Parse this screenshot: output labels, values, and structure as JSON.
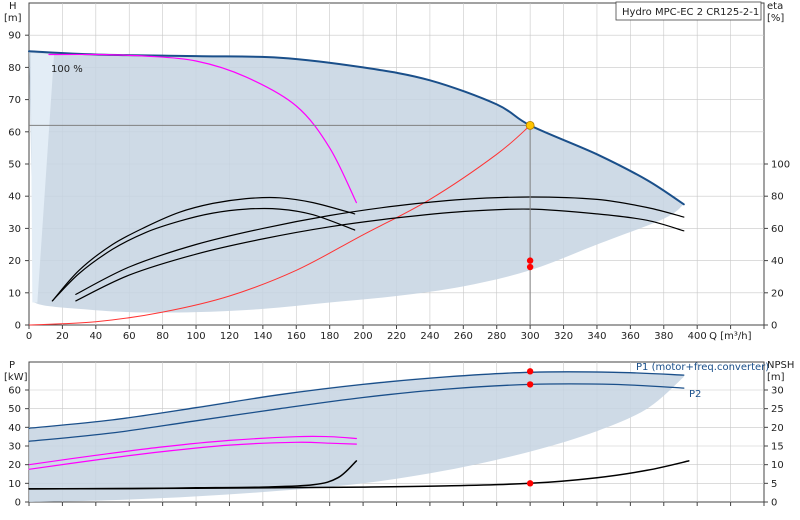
{
  "title": "Hydro MPC-EC 2 CR125-2-1",
  "colors": {
    "envelope": "#c6d4e2",
    "envelope_light": "#e3edf6",
    "grid": "#c8c8c8",
    "operating": "#808080",
    "pump_curve": "#1a4f8a",
    "reduced_curve": "#ff00ff",
    "system_curve": "#ff3333",
    "eff_curve": "#000000",
    "duty_point": "#ffc400",
    "marker": "#ff0000",
    "power_curve": "#1a4f8a",
    "npsh_curve": "#000000"
  },
  "chart_data": [
    {
      "type": "line",
      "panel": "head_eta",
      "xlabel": "Q [m³/h]",
      "ylabel_left": [
        "H",
        "[m]"
      ],
      "ylabel_right": [
        "eta",
        "[%]"
      ],
      "xlim": [
        0,
        440
      ],
      "ylim_left": [
        0,
        100
      ],
      "ylim_right": [
        0,
        200
      ],
      "x_ticks": [
        0,
        20,
        40,
        60,
        80,
        100,
        120,
        140,
        160,
        180,
        200,
        220,
        240,
        260,
        280,
        300,
        320,
        340,
        360,
        380,
        400
      ],
      "y_ticks_left": [
        0,
        10,
        20,
        30,
        40,
        50,
        60,
        70,
        80,
        90
      ],
      "y_ticks_right": [
        0,
        20,
        40,
        60,
        80,
        100
      ],
      "grid": true,
      "annotation": "100 %",
      "duty_point": {
        "x": 300,
        "y": 62
      },
      "envelope_upper": [
        [
          0,
          85
        ],
        [
          40,
          84
        ],
        [
          100,
          83.5
        ],
        [
          150,
          83
        ],
        [
          200,
          80
        ],
        [
          240,
          76
        ],
        [
          280,
          68.5
        ],
        [
          300,
          62
        ],
        [
          340,
          53
        ],
        [
          370,
          45
        ],
        [
          392,
          37.5
        ]
      ],
      "envelope_lower": [
        [
          392,
          37.5
        ],
        [
          380,
          33
        ],
        [
          340,
          25
        ],
        [
          300,
          17
        ],
        [
          260,
          12
        ],
        [
          220,
          9
        ],
        [
          180,
          7
        ],
        [
          140,
          5
        ],
        [
          100,
          4
        ],
        [
          60,
          4
        ],
        [
          30,
          5
        ],
        [
          10,
          6
        ],
        [
          3,
          7
        ]
      ],
      "series": [
        {
          "role": "pump_curve",
          "points": [
            [
              0,
              85
            ],
            [
              40,
              84
            ],
            [
              100,
              83.5
            ],
            [
              150,
              83
            ],
            [
              200,
              80
            ],
            [
              240,
              76
            ],
            [
              280,
              68.5
            ],
            [
              300,
              62
            ],
            [
              340,
              53
            ],
            [
              370,
              45
            ],
            [
              392,
              37.5
            ]
          ]
        },
        {
          "role": "reduced_curve",
          "points": [
            [
              12,
              84
            ],
            [
              40,
              84
            ],
            [
              70,
              83.5
            ],
            [
              100,
              82
            ],
            [
              130,
              77
            ],
            [
              160,
              68
            ],
            [
              180,
              55
            ],
            [
              196,
              38
            ]
          ]
        },
        {
          "role": "system_curve",
          "points": [
            [
              0,
              0
            ],
            [
              40,
              1
            ],
            [
              80,
              4
            ],
            [
              120,
              9
            ],
            [
              160,
              17
            ],
            [
              200,
              28
            ],
            [
              240,
              39
            ],
            [
              280,
              53
            ],
            [
              300,
              62
            ]
          ]
        },
        {
          "role": "eff_curve",
          "axis": "right",
          "points": [
            [
              14,
              15
            ],
            [
              30,
              34
            ],
            [
              50,
              50
            ],
            [
              70,
              61
            ],
            [
              90,
              70
            ],
            [
              110,
              75.5
            ],
            [
              130,
              78.5
            ],
            [
              150,
              79
            ],
            [
              170,
              76
            ],
            [
              195,
              69
            ]
          ]
        },
        {
          "role": "eff_curve",
          "axis": "right",
          "points": [
            [
              14,
              15
            ],
            [
              30,
              32
            ],
            [
              50,
              47
            ],
            [
              70,
              57.5
            ],
            [
              90,
              64.5
            ],
            [
              110,
              69.5
            ],
            [
              130,
              72
            ],
            [
              150,
              72
            ],
            [
              170,
              68.5
            ],
            [
              195,
              59
            ]
          ]
        },
        {
          "role": "eff_curve",
          "axis": "right",
          "points": [
            [
              28,
              19
            ],
            [
              60,
              36
            ],
            [
              100,
              50
            ],
            [
              140,
              60
            ],
            [
              180,
              68
            ],
            [
              220,
              74
            ],
            [
              260,
              78
            ],
            [
              300,
              79.5
            ],
            [
              340,
              78
            ],
            [
              370,
              73
            ],
            [
              392,
              67
            ]
          ]
        },
        {
          "role": "eff_curve",
          "axis": "right",
          "points": [
            [
              28,
              15
            ],
            [
              60,
              31
            ],
            [
              100,
              44
            ],
            [
              140,
              53.5
            ],
            [
              180,
              61
            ],
            [
              220,
              66.5
            ],
            [
              260,
              70.5
            ],
            [
              300,
              72
            ],
            [
              340,
              69
            ],
            [
              370,
              65
            ],
            [
              392,
              58.5
            ]
          ]
        }
      ],
      "markers": [
        {
          "x": 300,
          "y": 40
        },
        {
          "x": 300,
          "y": 36
        }
      ]
    },
    {
      "type": "line",
      "panel": "power_npsh",
      "xlabel": "",
      "ylabel_left": [
        "P",
        "[kW]"
      ],
      "ylabel_right": [
        "NPSH",
        "[m]"
      ],
      "xlim": [
        0,
        440
      ],
      "ylim_left": [
        0,
        75
      ],
      "ylim_right": [
        0,
        37.5
      ],
      "y_ticks_left": [
        0,
        10,
        20,
        30,
        40,
        50,
        60
      ],
      "y_ticks_right": [
        0,
        5,
        10,
        15,
        20,
        25,
        30
      ],
      "grid": true,
      "envelope_upper": [
        [
          0,
          39
        ],
        [
          50,
          44
        ],
        [
          100,
          51
        ],
        [
          150,
          58
        ],
        [
          200,
          63.5
        ],
        [
          250,
          67.5
        ],
        [
          300,
          69.5
        ],
        [
          350,
          69.5
        ],
        [
          392,
          68
        ]
      ],
      "envelope_lower": [
        [
          392,
          67
        ],
        [
          370,
          50
        ],
        [
          340,
          38
        ],
        [
          300,
          27
        ],
        [
          250,
          17
        ],
        [
          200,
          10
        ],
        [
          150,
          6
        ],
        [
          100,
          3
        ],
        [
          50,
          1
        ],
        [
          0,
          0
        ]
      ],
      "series": [
        {
          "name": "P1 (motor+freq.converter)",
          "role": "power_curve",
          "points": [
            [
              0,
              39.5
            ],
            [
              50,
              44
            ],
            [
              100,
              50.5
            ],
            [
              150,
              57.5
            ],
            [
              200,
              63
            ],
            [
              250,
              67
            ],
            [
              300,
              69.5
            ],
            [
              350,
              69.5
            ],
            [
              392,
              68
            ]
          ]
        },
        {
          "name": "P2",
          "role": "power_curve",
          "points": [
            [
              0,
              32.5
            ],
            [
              50,
              37
            ],
            [
              100,
              43.5
            ],
            [
              150,
              50
            ],
            [
              200,
              56
            ],
            [
              250,
              60.5
            ],
            [
              300,
              63
            ],
            [
              350,
              63
            ],
            [
              392,
              61
            ]
          ]
        },
        {
          "role": "reduced_curve",
          "points": [
            [
              0,
              20
            ],
            [
              40,
              25
            ],
            [
              80,
              29.5
            ],
            [
              120,
              33
            ],
            [
              160,
              35
            ],
            [
              180,
              35
            ],
            [
              196,
              34
            ]
          ]
        },
        {
          "role": "reduced_curve",
          "points": [
            [
              0,
              17.5
            ],
            [
              40,
              22.5
            ],
            [
              80,
              27
            ],
            [
              120,
              30.5
            ],
            [
              160,
              32
            ],
            [
              180,
              31.5
            ],
            [
              196,
              31
            ]
          ]
        },
        {
          "role": "npsh_curve",
          "axis": "right",
          "points": [
            [
              0,
              3.5
            ],
            [
              60,
              3.6
            ],
            [
              100,
              3.8
            ],
            [
              140,
              4
            ],
            [
              170,
              4.6
            ],
            [
              185,
              6.5
            ],
            [
              196,
              11
            ]
          ]
        },
        {
          "role": "npsh_curve",
          "axis": "right",
          "points": [
            [
              0,
              3.5
            ],
            [
              100,
              3.7
            ],
            [
              200,
              4
            ],
            [
              250,
              4.3
            ],
            [
              300,
              5
            ],
            [
              340,
              6.5
            ],
            [
              370,
              8.5
            ],
            [
              395,
              11
            ]
          ]
        }
      ],
      "markers": [
        {
          "x": 300,
          "y": 70,
          "axis": "left"
        },
        {
          "x": 300,
          "y": 63,
          "axis": "left"
        },
        {
          "x": 300,
          "y": 5,
          "axis": "right"
        }
      ]
    }
  ]
}
